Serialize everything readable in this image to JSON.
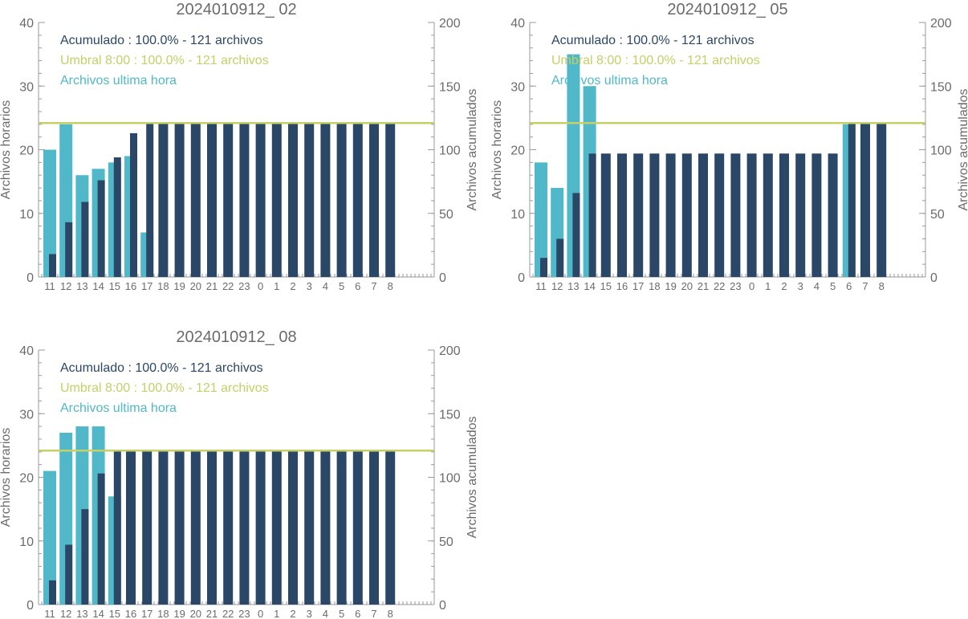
{
  "colors": {
    "hourly": "#50b8c8",
    "cumulative": "#2a4767",
    "threshold": "#c5d066",
    "axis": "#9a9a9a",
    "text": "#6b6b6b"
  },
  "chart_data": [
    {
      "type": "bar",
      "title": "2024010912_ 02",
      "categories": [
        "11",
        "12",
        "13",
        "14",
        "15",
        "16",
        "17",
        "18",
        "19",
        "20",
        "21",
        "22",
        "23",
        "0",
        "1",
        "2",
        "3",
        "4",
        "5",
        "6",
        "7",
        "8"
      ],
      "series": [
        {
          "name": "Archivos ultima hora",
          "axis": "left",
          "values": [
            20,
            24,
            16,
            17,
            18,
            19,
            7,
            0,
            0,
            0,
            0,
            0,
            0,
            0,
            0,
            0,
            0,
            0,
            0,
            0,
            0,
            0
          ]
        },
        {
          "name": "Acumulado",
          "axis": "right",
          "values": [
            18,
            43,
            59,
            76,
            94,
            113,
            121,
            121,
            121,
            121,
            121,
            121,
            121,
            121,
            121,
            121,
            121,
            121,
            121,
            121,
            121,
            121
          ]
        }
      ],
      "threshold": {
        "axis": "right",
        "value": 121
      },
      "legend": [
        {
          "text": "Acumulado : 100.0% - 121 archivos",
          "role": "cumulative"
        },
        {
          "text": "Umbral 8:00 : 100.0% - 121 archivos",
          "role": "threshold"
        },
        {
          "text": "Archivos ultima hora",
          "role": "hourly"
        }
      ],
      "ylabel_left": "Archivos horarios",
      "ylabel_right": "Archivos acumulados",
      "ylim_left": [
        0,
        40
      ],
      "ylim_right": [
        0,
        200
      ],
      "yticks_left": [
        "0",
        "10",
        "20",
        "30",
        "40"
      ],
      "yticks_right": [
        "0",
        "50",
        "100",
        "150",
        "200"
      ],
      "legend_position": "top-left"
    },
    {
      "type": "bar",
      "title": "2024010912_ 05",
      "categories": [
        "11",
        "12",
        "13",
        "14",
        "15",
        "16",
        "17",
        "18",
        "19",
        "20",
        "21",
        "22",
        "23",
        "0",
        "1",
        "2",
        "3",
        "4",
        "5",
        "6",
        "7",
        "8"
      ],
      "series": [
        {
          "name": "Archivos ultima hora",
          "axis": "left",
          "values": [
            18,
            14,
            35,
            30,
            0,
            0,
            0,
            0,
            0,
            0,
            0,
            0,
            0,
            0,
            0,
            0,
            0,
            0,
            0,
            24,
            0,
            0
          ]
        },
        {
          "name": "Acumulado",
          "axis": "right",
          "values": [
            15,
            30,
            66,
            97,
            97,
            97,
            97,
            97,
            97,
            97,
            97,
            97,
            97,
            97,
            97,
            97,
            97,
            97,
            97,
            121,
            121,
            121
          ]
        }
      ],
      "threshold": {
        "axis": "right",
        "value": 121
      },
      "legend": [
        {
          "text": "Acumulado : 100.0% - 121 archivos",
          "role": "cumulative"
        },
        {
          "text": "Umbral 8:00 : 100.0% - 121 archivos",
          "role": "threshold"
        },
        {
          "text": "Archivos ultima hora",
          "role": "hourly"
        }
      ],
      "ylabel_left": "Archivos horarios",
      "ylabel_right": "Archivos acumulados",
      "ylim_left": [
        0,
        40
      ],
      "ylim_right": [
        0,
        200
      ],
      "yticks_left": [
        "0",
        "10",
        "20",
        "30",
        "40"
      ],
      "yticks_right": [
        "0",
        "50",
        "100",
        "150",
        "200"
      ],
      "legend_position": "top-left"
    },
    {
      "type": "bar",
      "title": "2024010912_ 08",
      "categories": [
        "11",
        "12",
        "13",
        "14",
        "15",
        "16",
        "17",
        "18",
        "19",
        "20",
        "21",
        "22",
        "23",
        "0",
        "1",
        "2",
        "3",
        "4",
        "5",
        "6",
        "7",
        "8"
      ],
      "series": [
        {
          "name": "Archivos ultima hora",
          "axis": "left",
          "values": [
            21,
            27,
            28,
            28,
            17,
            0,
            0,
            0,
            0,
            0,
            0,
            0,
            0,
            0,
            0,
            0,
            0,
            0,
            0,
            0,
            0,
            0
          ]
        },
        {
          "name": "Acumulado",
          "axis": "right",
          "values": [
            19,
            47,
            75,
            103,
            121,
            121,
            121,
            121,
            121,
            121,
            121,
            121,
            121,
            121,
            121,
            121,
            121,
            121,
            121,
            121,
            121,
            121
          ]
        }
      ],
      "threshold": {
        "axis": "right",
        "value": 121
      },
      "legend": [
        {
          "text": "Acumulado : 100.0% - 121 archivos",
          "role": "cumulative"
        },
        {
          "text": "Umbral 8:00 : 100.0% - 121 archivos",
          "role": "threshold"
        },
        {
          "text": "Archivos ultima hora",
          "role": "hourly"
        }
      ],
      "ylabel_left": "Archivos horarios",
      "ylabel_right": "Archivos acumulados",
      "ylim_left": [
        0,
        40
      ],
      "ylim_right": [
        0,
        200
      ],
      "yticks_left": [
        "0",
        "10",
        "20",
        "30",
        "40"
      ],
      "yticks_right": [
        "0",
        "50",
        "100",
        "150",
        "200"
      ],
      "legend_position": "top-left"
    }
  ]
}
